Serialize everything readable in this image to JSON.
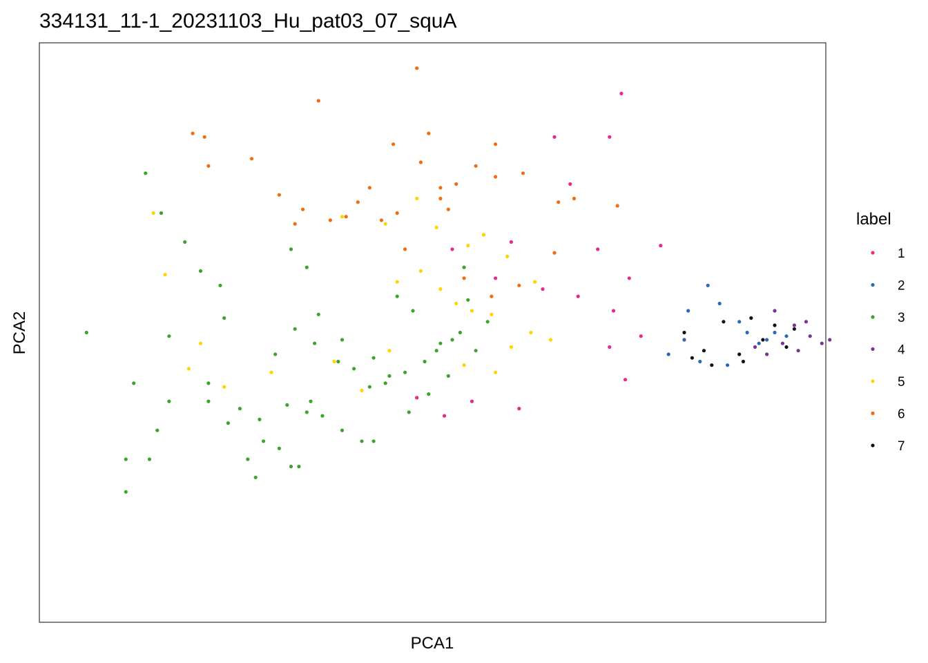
{
  "chart_data": {
    "type": "scatter",
    "title": "334131_11-1_20231103_Hu_pat03_07_squA",
    "xlabel": "PCA1",
    "ylabel": "PCA2",
    "xlim": [
      -10,
      10
    ],
    "ylim": [
      -8,
      8
    ],
    "grid": false,
    "legend": {
      "title": "label",
      "placement": "right",
      "entries": [
        {
          "name": "1",
          "color": "#E7298A"
        },
        {
          "name": "2",
          "color": "#2B6AAE"
        },
        {
          "name": "3",
          "color": "#3EA22E"
        },
        {
          "name": "4",
          "color": "#7B3294"
        },
        {
          "name": "5",
          "color": "#FFD400"
        },
        {
          "name": "6",
          "color": "#F26B0F"
        },
        {
          "name": "7",
          "color": "#111111"
        }
      ]
    },
    "series": [
      {
        "name": "1",
        "color": "#E7298A",
        "x": [
          4.8,
          4.5,
          3.1,
          3.5,
          0.5,
          2.0,
          1.6,
          2.8,
          3.7,
          4.2,
          5.0,
          5.8,
          4.6,
          4.9,
          2.2,
          1.0,
          0.3,
          -0.4,
          4.5,
          5.3,
          6.4
        ],
        "y": [
          6.6,
          5.4,
          5.4,
          4.1,
          2.3,
          2.5,
          1.5,
          1.2,
          1.0,
          2.3,
          1.5,
          2.4,
          0.6,
          -1.3,
          -2.1,
          -1.9,
          -2.3,
          -1.8,
          -0.4,
          -0.1,
          -0.2
        ]
      },
      {
        "name": "2",
        "color": "#2B6AAE",
        "x": [
          6.5,
          7.0,
          7.3,
          7.8,
          8.0,
          8.3,
          8.5,
          8.7,
          9.0,
          6.8,
          7.5,
          6.0,
          6.4
        ],
        "y": [
          0.6,
          1.3,
          0.8,
          0.3,
          0.0,
          -0.3,
          -0.2,
          0.0,
          -0.1,
          -0.8,
          -0.9,
          -0.6,
          -0.2
        ]
      },
      {
        "name": "3",
        "color": "#3EA22E",
        "x": [
          -7.3,
          -6.3,
          -5.9,
          -5.4,
          -6.7,
          -5.7,
          -7.6,
          -7.2,
          -4.7,
          -4.5,
          -3.4,
          -1.5,
          -0.1,
          0.4,
          -4.0,
          -3.5,
          -3.0,
          -3.1,
          -2.4,
          -1.2,
          -0.2,
          0.5,
          -5.2,
          -4.4,
          -3.9,
          -3.6,
          -2.3,
          -1.8,
          -1.1,
          -0.6,
          -5.7,
          -4.9,
          -4.3,
          -3.7,
          -3.2,
          -2.8,
          -1.6,
          -0.7,
          0.1,
          0.7,
          -6.9,
          -8.8,
          -7.8,
          -7.8,
          -7.0,
          -6.7,
          -5.3,
          -3.2,
          -3.6,
          -2.9,
          -2.3,
          -2.0,
          -1.5,
          -0.9,
          -0.5,
          0.9,
          1.4,
          1.1,
          0.8,
          0.2
        ],
        "y": [
          4.4,
          2.5,
          1.7,
          1.3,
          -0.1,
          -1.4,
          -1.4,
          -3.5,
          -3.5,
          -4.0,
          -3.7,
          -3.0,
          -1.7,
          -1.2,
          -0.6,
          0.1,
          -0.3,
          -1.9,
          -0.8,
          -1.4,
          -0.8,
          -0.2,
          -2.5,
          -2.4,
          -3.2,
          -3.7,
          -2.7,
          -3.0,
          -1.2,
          -2.2,
          -1.9,
          -2.1,
          -3.0,
          -2.0,
          -2.2,
          -2.3,
          -1.5,
          -1.1,
          -0.5,
          0.0,
          3.3,
          0.0,
          -3.5,
          -4.4,
          -2.7,
          -1.9,
          0.4,
          1.8,
          2.3,
          0.5,
          -0.2,
          -1.0,
          -0.7,
          1.0,
          0.6,
          0.9,
          0.3,
          -0.5,
          1.8,
          -0.3
        ]
      },
      {
        "name": "4",
        "color": "#7B3294",
        "x": [
          8.2,
          8.5,
          8.9,
          9.3,
          9.6,
          9.9,
          10.1,
          9.5,
          8.7,
          9.2
        ],
        "y": [
          -0.4,
          -0.6,
          -0.3,
          -0.5,
          -0.1,
          -0.3,
          -0.2,
          0.3,
          0.6,
          0.2
        ]
      },
      {
        "name": "5",
        "color": "#FFD400",
        "x": [
          -7.1,
          -6.8,
          -5.9,
          -6.2,
          -5.3,
          -4.1,
          -2.5,
          -1.8,
          -1.1,
          -0.9,
          -0.3,
          0.2,
          0.6,
          1.0,
          1.5,
          2.0,
          2.5,
          3.0,
          -0.4,
          0.1,
          1.3,
          1.9,
          2.6,
          0.8,
          1.6,
          -2.3,
          -1.2,
          0.9
        ],
        "y": [
          3.3,
          1.6,
          -0.3,
          -1.0,
          -1.5,
          -1.1,
          -0.8,
          -1.6,
          -0.5,
          1.4,
          1.7,
          1.2,
          0.8,
          0.6,
          0.5,
          -0.4,
          0.0,
          -0.2,
          3.7,
          2.9,
          2.7,
          2.1,
          1.4,
          -0.9,
          -1.1,
          3.2,
          3.0,
          2.4
        ]
      },
      {
        "name": "6",
        "color": "#F26B0F",
        "x": [
          -0.4,
          -2.9,
          -0.1,
          1.6,
          -6.1,
          -5.7,
          -5.8,
          -4.6,
          -3.9,
          -3.3,
          -1.9,
          -1.3,
          -0.9,
          -0.3,
          0.2,
          0.6,
          1.1,
          1.6,
          2.3,
          3.6,
          4.7,
          3.1,
          2.2,
          0.8,
          -0.7,
          -2.2,
          -3.5,
          -1.6,
          0.4,
          3.2,
          -1.0,
          0.2,
          -2.6,
          1.5
        ],
        "y": [
          7.3,
          6.4,
          5.5,
          5.2,
          5.5,
          4.6,
          5.4,
          4.8,
          3.8,
          3.4,
          3.6,
          3.1,
          3.3,
          4.7,
          4.0,
          4.1,
          4.6,
          4.3,
          4.4,
          3.7,
          3.5,
          2.2,
          1.3,
          1.5,
          2.3,
          3.2,
          3.0,
          4.0,
          3.4,
          3.6,
          5.2,
          3.7,
          3.1,
          1.0
        ]
      },
      {
        "name": "7",
        "color": "#111111",
        "x": [
          6.4,
          6.9,
          7.4,
          7.8,
          8.1,
          8.4,
          8.7,
          9.0,
          9.2,
          6.6,
          7.1,
          7.9
        ],
        "y": [
          0.0,
          -0.5,
          0.3,
          -0.6,
          0.4,
          -0.2,
          0.2,
          -0.4,
          0.1,
          -0.7,
          -0.9,
          -0.8
        ]
      }
    ]
  }
}
